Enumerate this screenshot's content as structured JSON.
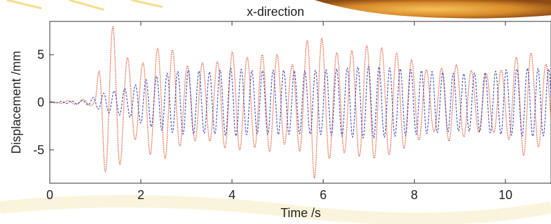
{
  "chart_data": {
    "type": "line",
    "title": "x-direction",
    "xlabel": "Time /s",
    "ylabel": "Displacement /mm",
    "xlim": [
      0,
      11
    ],
    "ylim": [
      -8.5,
      8.5
    ],
    "xticks": [
      0,
      2,
      4,
      6,
      8,
      10
    ],
    "xtick_labels": [
      "0",
      "2",
      "4",
      "6",
      "8",
      "10"
    ],
    "yticks": [
      -5,
      0,
      5
    ],
    "ytick_labels": [
      "-5",
      "0",
      "5"
    ],
    "grid": false,
    "series": [
      {
        "color": "#e0603a",
        "style": "dotted",
        "x": [
          0,
          1.0,
          1.1,
          1.2,
          1.3,
          1.4,
          1.5,
          1.6,
          1.8,
          2.0,
          2.2,
          2.4,
          2.6,
          3.0,
          3.3,
          3.6,
          4.0,
          4.4,
          4.8,
          5.0,
          5.3,
          5.6,
          5.8,
          6.0,
          6.3,
          6.6,
          7.0,
          7.4,
          7.8,
          8.0,
          8.4,
          8.8,
          9.2,
          9.6,
          10.0,
          10.4,
          10.7,
          11.0
        ],
        "y": [
          0,
          0.4,
          4.5,
          7.2,
          7.7,
          8.0,
          7.3,
          5.5,
          4.0,
          3.8,
          5.5,
          5.7,
          6.0,
          3.8,
          4.2,
          4.0,
          5.3,
          4.6,
          5.2,
          5.0,
          3.8,
          6.0,
          8.0,
          6.5,
          5.2,
          5.4,
          6.0,
          5.6,
          4.8,
          4.3,
          3.0,
          4.2,
          3.4,
          3.0,
          3.5,
          5.6,
          4.8,
          3.5
        ]
      },
      {
        "color": "#3b47c4",
        "style": "dashed",
        "x": [
          0,
          0.8,
          1.0,
          1.2,
          1.5,
          1.8,
          2.0,
          2.5,
          3.0,
          3.5,
          4.0,
          4.5,
          5.0,
          5.5,
          6.0,
          6.5,
          7.0,
          7.5,
          8.0,
          8.5,
          9.0,
          9.5,
          10.0,
          10.5,
          11.0
        ],
        "y": [
          0.05,
          0.2,
          0.6,
          1.0,
          1.3,
          1.6,
          2.2,
          3.0,
          3.4,
          3.2,
          3.6,
          3.3,
          3.4,
          3.3,
          3.4,
          3.6,
          3.8,
          3.6,
          3.4,
          3.2,
          3.0,
          3.1,
          3.4,
          3.6,
          3.5
        ]
      }
    ]
  }
}
